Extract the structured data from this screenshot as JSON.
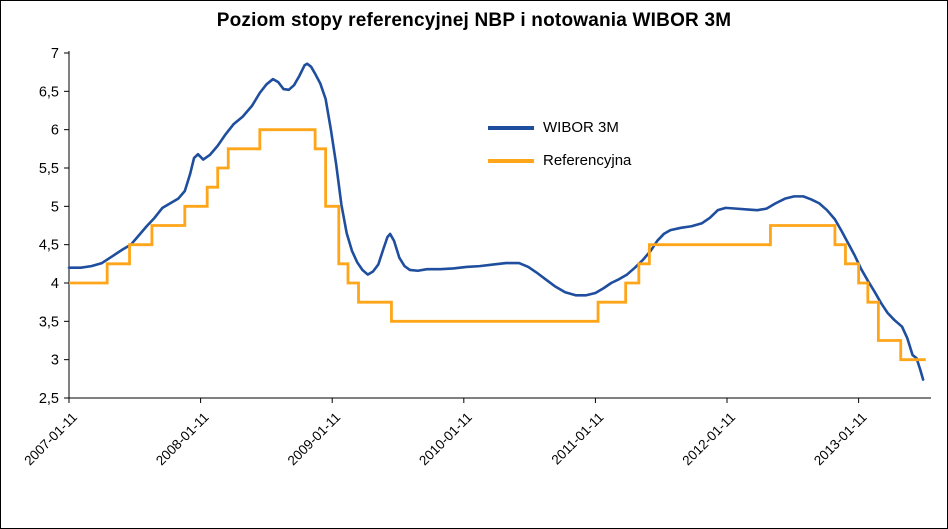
{
  "chart_data": {
    "type": "line",
    "title": "Poziom stopy referencyjnej NBP i notowania WIBOR 3M",
    "xlabel": "",
    "ylabel": "",
    "grid": false,
    "x_axis": {
      "min": 2007.03,
      "max": 2013.58,
      "ticks": [
        2007.03,
        2008.03,
        2009.03,
        2010.03,
        2011.03,
        2012.03,
        2013.03
      ],
      "tick_labels": [
        "2007-01-11",
        "2008-01-11",
        "2009-01-11",
        "2010-01-11",
        "2011-01-11",
        "2012-01-11",
        "2013-01-11"
      ]
    },
    "y_axis": {
      "min": 2.5,
      "max": 7,
      "ticks": [
        2.5,
        3,
        3.5,
        4,
        4.5,
        5,
        5.5,
        6,
        6.5,
        7
      ],
      "tick_labels": [
        "2,5",
        "3",
        "3,5",
        "4",
        "4,5",
        "5",
        "5,5",
        "6",
        "6,5",
        "7"
      ]
    },
    "legend": {
      "position": "inside-center-top",
      "entries": [
        {
          "label": "WIBOR 3M",
          "color": "#1F4E9E"
        },
        {
          "label": "Referencyjna",
          "color": "#FFA519"
        }
      ]
    },
    "series": [
      {
        "name": "WIBOR 3M",
        "color": "#1F4E9E",
        "style": "line",
        "points": [
          [
            2007.03,
            4.2
          ],
          [
            2007.12,
            4.2
          ],
          [
            2007.2,
            4.22
          ],
          [
            2007.28,
            4.26
          ],
          [
            2007.36,
            4.35
          ],
          [
            2007.44,
            4.44
          ],
          [
            2007.5,
            4.5
          ],
          [
            2007.56,
            4.62
          ],
          [
            2007.62,
            4.74
          ],
          [
            2007.68,
            4.85
          ],
          [
            2007.74,
            4.98
          ],
          [
            2007.8,
            5.04
          ],
          [
            2007.86,
            5.1
          ],
          [
            2007.91,
            5.2
          ],
          [
            2007.95,
            5.42
          ],
          [
            2007.98,
            5.63
          ],
          [
            2008.01,
            5.68
          ],
          [
            2008.05,
            5.61
          ],
          [
            2008.1,
            5.67
          ],
          [
            2008.16,
            5.79
          ],
          [
            2008.22,
            5.94
          ],
          [
            2008.28,
            6.07
          ],
          [
            2008.35,
            6.17
          ],
          [
            2008.42,
            6.31
          ],
          [
            2008.48,
            6.48
          ],
          [
            2008.53,
            6.59
          ],
          [
            2008.58,
            6.66
          ],
          [
            2008.62,
            6.62
          ],
          [
            2008.66,
            6.53
          ],
          [
            2008.7,
            6.52
          ],
          [
            2008.74,
            6.58
          ],
          [
            2008.78,
            6.7
          ],
          [
            2008.82,
            6.84
          ],
          [
            2008.84,
            6.86
          ],
          [
            2008.87,
            6.82
          ],
          [
            2008.9,
            6.73
          ],
          [
            2008.94,
            6.6
          ],
          [
            2008.98,
            6.4
          ],
          [
            2009.02,
            6.0
          ],
          [
            2009.06,
            5.55
          ],
          [
            2009.1,
            5.02
          ],
          [
            2009.14,
            4.65
          ],
          [
            2009.18,
            4.42
          ],
          [
            2009.22,
            4.27
          ],
          [
            2009.26,
            4.17
          ],
          [
            2009.3,
            4.11
          ],
          [
            2009.34,
            4.15
          ],
          [
            2009.38,
            4.24
          ],
          [
            2009.42,
            4.45
          ],
          [
            2009.45,
            4.6
          ],
          [
            2009.47,
            4.64
          ],
          [
            2009.5,
            4.55
          ],
          [
            2009.54,
            4.33
          ],
          [
            2009.58,
            4.22
          ],
          [
            2009.62,
            4.17
          ],
          [
            2009.68,
            4.16
          ],
          [
            2009.75,
            4.18
          ],
          [
            2009.85,
            4.18
          ],
          [
            2009.95,
            4.19
          ],
          [
            2010.05,
            4.21
          ],
          [
            2010.15,
            4.22
          ],
          [
            2010.25,
            4.24
          ],
          [
            2010.35,
            4.26
          ],
          [
            2010.45,
            4.26
          ],
          [
            2010.52,
            4.21
          ],
          [
            2010.58,
            4.14
          ],
          [
            2010.65,
            4.05
          ],
          [
            2010.72,
            3.96
          ],
          [
            2010.8,
            3.88
          ],
          [
            2010.88,
            3.84
          ],
          [
            2010.96,
            3.84
          ],
          [
            2011.03,
            3.87
          ],
          [
            2011.09,
            3.93
          ],
          [
            2011.15,
            4.0
          ],
          [
            2011.21,
            4.05
          ],
          [
            2011.27,
            4.11
          ],
          [
            2011.33,
            4.2
          ],
          [
            2011.39,
            4.3
          ],
          [
            2011.45,
            4.42
          ],
          [
            2011.5,
            4.55
          ],
          [
            2011.55,
            4.64
          ],
          [
            2011.6,
            4.69
          ],
          [
            2011.68,
            4.72
          ],
          [
            2011.76,
            4.74
          ],
          [
            2011.84,
            4.78
          ],
          [
            2011.9,
            4.85
          ],
          [
            2011.96,
            4.95
          ],
          [
            2012.02,
            4.98
          ],
          [
            2012.1,
            4.97
          ],
          [
            2012.18,
            4.96
          ],
          [
            2012.26,
            4.95
          ],
          [
            2012.33,
            4.97
          ],
          [
            2012.4,
            5.04
          ],
          [
            2012.47,
            5.1
          ],
          [
            2012.54,
            5.13
          ],
          [
            2012.61,
            5.13
          ],
          [
            2012.67,
            5.09
          ],
          [
            2012.73,
            5.04
          ],
          [
            2012.79,
            4.95
          ],
          [
            2012.85,
            4.83
          ],
          [
            2012.9,
            4.68
          ],
          [
            2012.95,
            4.52
          ],
          [
            2013.0,
            4.36
          ],
          [
            2013.05,
            4.18
          ],
          [
            2013.1,
            4.03
          ],
          [
            2013.15,
            3.89
          ],
          [
            2013.2,
            3.74
          ],
          [
            2013.25,
            3.61
          ],
          [
            2013.3,
            3.52
          ],
          [
            2013.36,
            3.43
          ],
          [
            2013.4,
            3.28
          ],
          [
            2013.44,
            3.06
          ],
          [
            2013.47,
            3.02
          ],
          [
            2013.5,
            2.86
          ],
          [
            2013.52,
            2.74
          ]
        ]
      },
      {
        "name": "Referencyjna",
        "color": "#FFA519",
        "style": "step",
        "points": [
          [
            2007.03,
            4.0
          ],
          [
            2007.32,
            4.25
          ],
          [
            2007.49,
            4.5
          ],
          [
            2007.66,
            4.75
          ],
          [
            2007.91,
            5.0
          ],
          [
            2008.08,
            5.25
          ],
          [
            2008.16,
            5.5
          ],
          [
            2008.24,
            5.75
          ],
          [
            2008.48,
            6.0
          ],
          [
            2008.9,
            5.75
          ],
          [
            2008.98,
            5.0
          ],
          [
            2009.08,
            4.25
          ],
          [
            2009.15,
            4.0
          ],
          [
            2009.23,
            3.75
          ],
          [
            2009.48,
            3.5
          ],
          [
            2011.05,
            3.75
          ],
          [
            2011.26,
            4.0
          ],
          [
            2011.36,
            4.25
          ],
          [
            2011.44,
            4.5
          ],
          [
            2012.36,
            4.75
          ],
          [
            2012.85,
            4.5
          ],
          [
            2012.93,
            4.25
          ],
          [
            2013.03,
            4.0
          ],
          [
            2013.1,
            3.75
          ],
          [
            2013.18,
            3.25
          ],
          [
            2013.35,
            3.0
          ],
          [
            2013.54,
            3.0
          ]
        ]
      }
    ]
  }
}
